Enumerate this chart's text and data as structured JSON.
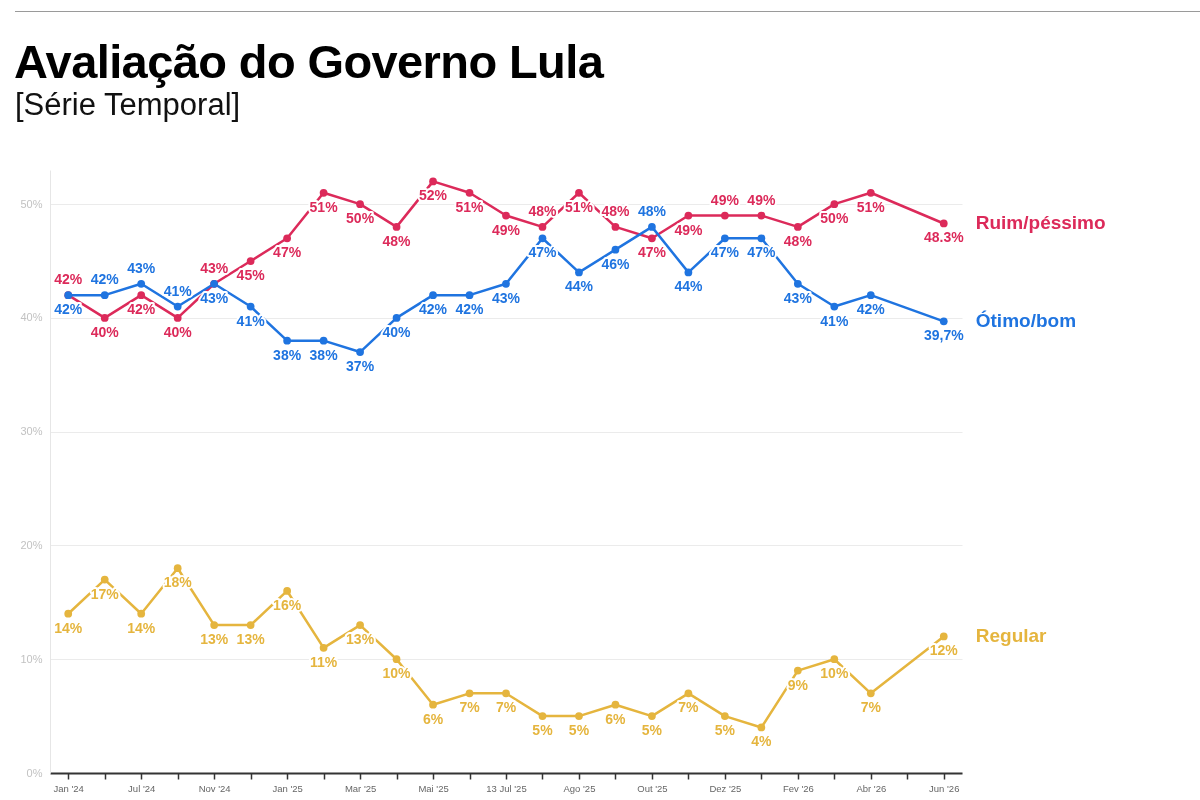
{
  "chart_data": {
    "type": "line",
    "title": "Avaliação do Governo Lula",
    "subtitle": "[Série Temporal]",
    "categories": [
      "Jan '24",
      null,
      "Jul '24",
      null,
      "Nov '24",
      null,
      "Jan '25",
      null,
      "Mar '25",
      null,
      "Mai '25",
      null,
      "13 Jul '25",
      null,
      "Ago '25",
      null,
      "Out '25",
      null,
      "Dez '25",
      null,
      "Fev '26",
      null,
      "Abr '26",
      null,
      "Jun '26"
    ],
    "series": [
      {
        "name": "Ruim/péssimo",
        "color": "#dc2a5a",
        "values": [
          42,
          40,
          42,
          40,
          43,
          45,
          47,
          51,
          50,
          48,
          52,
          51,
          49,
          48,
          51,
          48,
          47,
          49,
          49,
          49,
          48,
          50,
          51,
          null,
          48.3
        ],
        "value_labels": [
          "42%",
          "40%",
          "42%",
          "40%",
          "43%",
          "45%",
          "47%",
          "51%",
          "50%",
          "48%",
          "52%",
          "51%",
          "49%",
          "48%",
          "51%",
          "48%",
          "47%",
          "49%",
          "49%",
          "49%",
          "48%",
          "50%",
          "51%",
          null,
          "48.3%"
        ]
      },
      {
        "name": "Ótimo/bom",
        "color": "#1f74e0",
        "values": [
          42,
          42,
          43,
          41,
          43,
          41,
          38,
          38,
          37,
          40,
          42,
          42,
          43,
          47,
          44,
          46,
          48,
          44,
          47,
          47,
          43,
          41,
          42,
          null,
          39.7
        ],
        "value_labels": [
          "42%",
          "42%",
          "43%",
          "41%",
          "43%",
          "41%",
          "38%",
          "38%",
          "37%",
          "40%",
          "42%",
          "42%",
          "43%",
          "47%",
          "44%",
          "46%",
          "48%",
          "44%",
          "47%",
          "47%",
          "43%",
          "41%",
          "42%",
          null,
          "39,7%"
        ]
      },
      {
        "name": "Regular",
        "color": "#e5b53e",
        "values": [
          14,
          17,
          14,
          18,
          13,
          13,
          16,
          11,
          13,
          10,
          6,
          7,
          7,
          5,
          5,
          6,
          5,
          7,
          5,
          4,
          9,
          10,
          7,
          null,
          12
        ],
        "value_labels": [
          "14%",
          "17%",
          "14%",
          "18%",
          "13%",
          "13%",
          "16%",
          "11%",
          "13%",
          "10%",
          "6%",
          "7%",
          "7%",
          "5%",
          "5%",
          "6%",
          "5%",
          "7%",
          "5%",
          "4%",
          "9%",
          "10%",
          "7%",
          null,
          "12%"
        ]
      }
    ],
    "ylim": [
      0,
      53
    ],
    "yticks": [
      {
        "value": 0,
        "label": "0%"
      },
      {
        "value": 10,
        "label": "10%"
      },
      {
        "value": 20,
        "label": "20%"
      },
      {
        "value": 30,
        "label": "30%"
      },
      {
        "value": 40,
        "label": "40%"
      },
      {
        "value": 50,
        "label": "50%"
      }
    ],
    "grid": "y",
    "legend": false,
    "marker": "circle",
    "line_style": "solid"
  }
}
